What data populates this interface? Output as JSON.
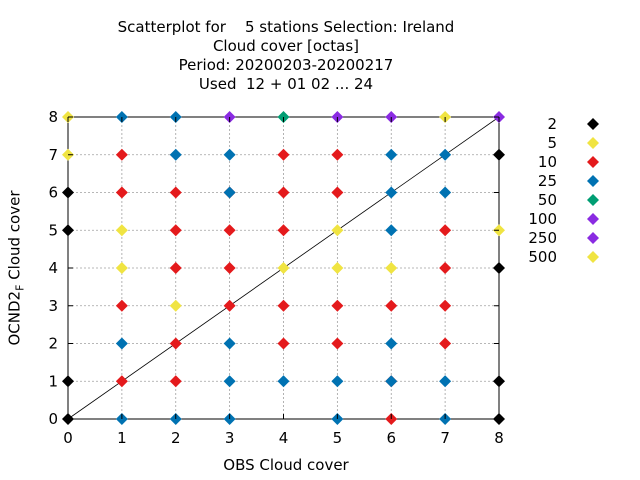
{
  "title": {
    "line1": "Scatterplot for    5 stations Selection: Ireland",
    "line2": "Cloud cover [octas]",
    "line3": "Period: 20200203-20200217",
    "line4": "Used  12 + 01 02 ... 24"
  },
  "chart_data": {
    "type": "scatter",
    "xlabel": "OBS Cloud cover",
    "ylabel_main": "OCND2",
    "ylabel_sub": "F",
    "ylabel_tail": " Cloud cover",
    "xlim": [
      0,
      8
    ],
    "ylim": [
      0,
      8
    ],
    "xticks": [
      "0",
      "1",
      "2",
      "3",
      "4",
      "5",
      "6",
      "7",
      "8"
    ],
    "yticks": [
      "0",
      "1",
      "2",
      "3",
      "4",
      "5",
      "6",
      "7",
      "8"
    ],
    "grid": true,
    "diagonal_line": true,
    "legend_position": "right",
    "legend": [
      {
        "label": "2",
        "color": "#000000"
      },
      {
        "label": "5",
        "color": "#f0e442"
      },
      {
        "label": "10",
        "color": "#e41a1c"
      },
      {
        "label": "25",
        "color": "#0072b2"
      },
      {
        "label": "50",
        "color": "#009e73"
      },
      {
        "label": "100",
        "color": "#8a2be2"
      },
      {
        "label": "250",
        "color": "#8a2be2"
      },
      {
        "label": "500",
        "color": "#f0e442"
      }
    ],
    "series": [
      {
        "name": "2",
        "points": [
          [
            0,
            0
          ],
          [
            0,
            1
          ],
          [
            0,
            5
          ],
          [
            0,
            6
          ],
          [
            8,
            0
          ],
          [
            8,
            1
          ],
          [
            8,
            4
          ],
          [
            8,
            7
          ]
        ]
      },
      {
        "name": "5",
        "points": [
          [
            0,
            7
          ],
          [
            0,
            8
          ],
          [
            1,
            4
          ],
          [
            1,
            5
          ],
          [
            2,
            3
          ],
          [
            4,
            4
          ],
          [
            5,
            4
          ],
          [
            5,
            5
          ],
          [
            6,
            4
          ],
          [
            7,
            8
          ],
          [
            8,
            5
          ]
        ]
      },
      {
        "name": "10",
        "points": [
          [
            1,
            1
          ],
          [
            1,
            3
          ],
          [
            1,
            6
          ],
          [
            1,
            7
          ],
          [
            2,
            1
          ],
          [
            2,
            2
          ],
          [
            2,
            4
          ],
          [
            2,
            5
          ],
          [
            2,
            6
          ],
          [
            3,
            3
          ],
          [
            3,
            4
          ],
          [
            3,
            5
          ],
          [
            3,
            6
          ],
          [
            4,
            2
          ],
          [
            4,
            3
          ],
          [
            4,
            5
          ],
          [
            4,
            6
          ],
          [
            4,
            7
          ],
          [
            5,
            2
          ],
          [
            5,
            3
          ],
          [
            5,
            6
          ],
          [
            5,
            7
          ],
          [
            6,
            0
          ],
          [
            6,
            1
          ],
          [
            6,
            3
          ],
          [
            7,
            2
          ],
          [
            7,
            3
          ],
          [
            7,
            4
          ],
          [
            7,
            5
          ]
        ]
      },
      {
        "name": "25",
        "points": [
          [
            1,
            0
          ],
          [
            1,
            2
          ],
          [
            1,
            8
          ],
          [
            2,
            0
          ],
          [
            2,
            7
          ],
          [
            2,
            8
          ],
          [
            3,
            0
          ],
          [
            3,
            1
          ],
          [
            3,
            2
          ],
          [
            3,
            6
          ],
          [
            3,
            7
          ],
          [
            4,
            1
          ],
          [
            5,
            0
          ],
          [
            5,
            1
          ],
          [
            6,
            1
          ],
          [
            6,
            2
          ],
          [
            6,
            5
          ],
          [
            6,
            6
          ],
          [
            6,
            7
          ],
          [
            7,
            0
          ],
          [
            7,
            1
          ],
          [
            7,
            6
          ],
          [
            7,
            7
          ]
        ]
      },
      {
        "name": "50",
        "points": [
          [
            4,
            8
          ]
        ]
      },
      {
        "name": "100",
        "points": [
          [
            3,
            8
          ],
          [
            5,
            8
          ],
          [
            6,
            8
          ],
          [
            8,
            8
          ]
        ]
      }
    ]
  }
}
